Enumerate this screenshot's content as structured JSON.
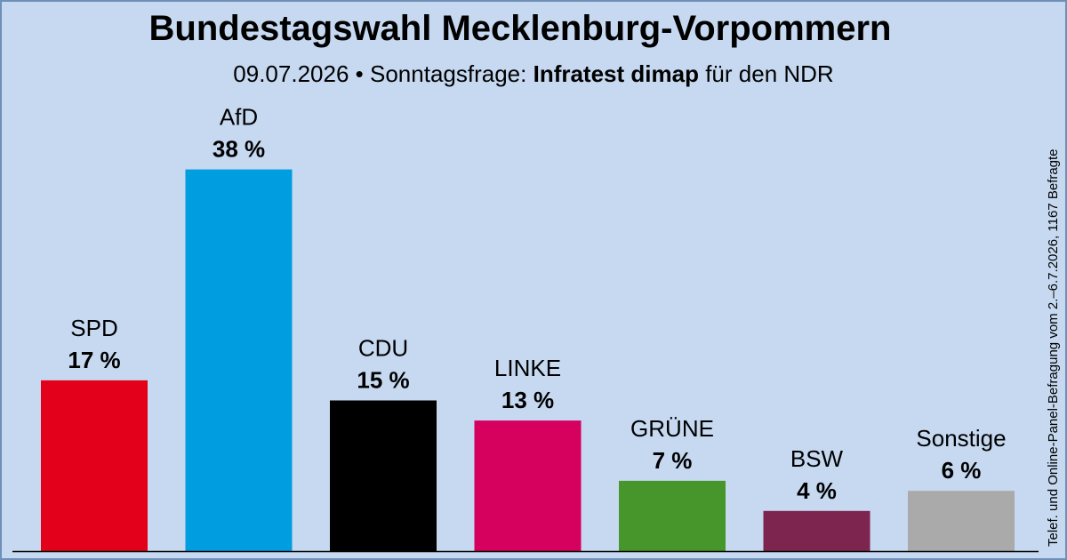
{
  "header": {
    "title": "Bundestagswahl Mecklenburg-Vorpommern",
    "date": "09.07.2026",
    "bullet": "•",
    "prefix": "Sonntagsfrage:",
    "institute": "Infratest dimap",
    "suffix": "für den NDR"
  },
  "sidenote": "Telef. und Online-Panel-Befragung vom 2.–6.7.2026, 1167 Befragte",
  "chart_data": {
    "type": "bar",
    "title": "Bundestagswahl Mecklenburg-Vorpommern",
    "xlabel": "",
    "ylabel": "",
    "ylim": [
      0,
      40
    ],
    "grid": false,
    "unit": "%",
    "categories": [
      "SPD",
      "AfD",
      "CDU",
      "LINKE",
      "GRÜNE",
      "BSW",
      "Sonstige"
    ],
    "values": [
      17,
      38,
      15,
      13,
      7,
      4,
      6
    ],
    "labels": [
      "17 %",
      "38 %",
      "15 %",
      "13 %",
      "7 %",
      "4 %",
      "6 %"
    ],
    "colors": [
      "#e3001b",
      "#009ee0",
      "#000000",
      "#d6005f",
      "#46962b",
      "#7d254f",
      "#aaaaaa"
    ]
  }
}
